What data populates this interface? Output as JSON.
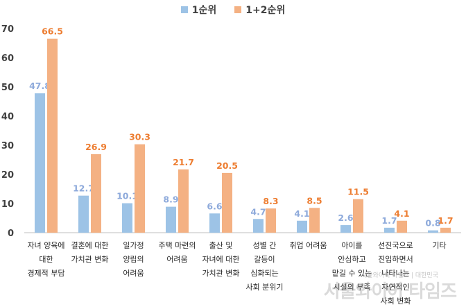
{
  "chart_data": {
    "type": "bar",
    "categories": [
      [
        "자녀 양육에",
        "대한",
        "경제적 부담"
      ],
      [
        "결혼에 대한",
        "가치관 변화"
      ],
      [
        "일가정",
        "양립의",
        "어려움"
      ],
      [
        "주택 마련의",
        "어려움"
      ],
      [
        "출산 및",
        "자녀에 대한",
        "가치관 변화"
      ],
      [
        "성별 간",
        "갈등이",
        "심화되는",
        "사회 분위기"
      ],
      [
        "취업 어려움"
      ],
      [
        "아이를",
        "안심하고",
        "맡길 수 있는",
        "시설의 부족"
      ],
      [
        "선진국으로",
        "진입하면서",
        "나타나는",
        "자연적인",
        "사회 변화"
      ],
      [
        "기타"
      ]
    ],
    "series": [
      {
        "name": "1순위",
        "color": "#9dc3e6",
        "label_color": "#8eaadb",
        "values": [
          47.8,
          12.7,
          10.1,
          8.9,
          6.6,
          4.7,
          4.1,
          2.6,
          1.7,
          0.8
        ]
      },
      {
        "name": "1+2순위",
        "color": "#f4b183",
        "label_color": "#ed7d31",
        "values": [
          66.5,
          26.9,
          30.3,
          21.7,
          20.5,
          8.3,
          8.5,
          11.5,
          4.1,
          1.7
        ]
      }
    ],
    "ylim": [
      0,
      70
    ],
    "yticks": [
      0,
      10,
      20,
      30,
      40,
      50,
      60,
      70
    ],
    "grid": false,
    "legend_position": "top"
  },
  "watermark": "서울와이어 타임즈",
  "watermark_small": "서울와이어 타임즈 | 대한민국"
}
